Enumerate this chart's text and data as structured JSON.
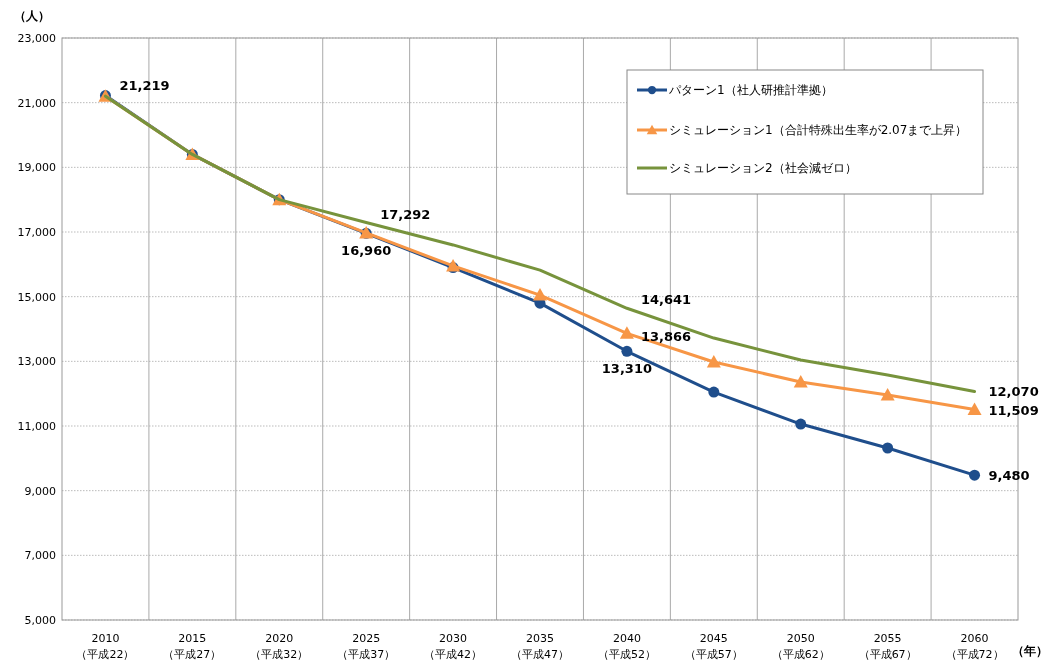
{
  "chart_data": {
    "type": "line",
    "ylabel": "（人）",
    "xlabel": "（年）",
    "categories": [
      "2010\n（平成22）",
      "2015\n（平成27）",
      "2020\n（平成32）",
      "2025\n（平成37）",
      "2030\n（平成42）",
      "2035\n（平成47）",
      "2040\n（平成52）",
      "2045\n（平成57）",
      "2050\n（平成62）",
      "2055\n（平成67）",
      "2060\n（平成72）"
    ],
    "ylim": [
      5000,
      23000
    ],
    "yticks": [
      {
        "value": 5000,
        "label": "5,000"
      },
      {
        "value": 7000,
        "label": "7,000"
      },
      {
        "value": 9000,
        "label": "9,000"
      },
      {
        "value": 11000,
        "label": "11,000"
      },
      {
        "value": 13000,
        "label": "13,000"
      },
      {
        "value": 15000,
        "label": "15,000"
      },
      {
        "value": 17000,
        "label": "17,000"
      },
      {
        "value": 19000,
        "label": "19,000"
      },
      {
        "value": 21000,
        "label": "21,000"
      },
      {
        "value": 23000,
        "label": "23,000"
      }
    ],
    "grid": true,
    "legend": "top right",
    "line_style": "solid",
    "series": [
      {
        "name": "パターン1（社人研推計準拠）",
        "color": "#1f4e8c",
        "marker": "circle",
        "values": [
          21219,
          19400,
          18000,
          16960,
          15900,
          14800,
          13310,
          12050,
          11060,
          10320,
          9480
        ],
        "value_labels": [
          "21,219",
          null,
          null,
          "16,960",
          null,
          null,
          "13,310",
          null,
          null,
          null,
          "9,480"
        ]
      },
      {
        "name": "シミュレーション1（合計特殊出生率が2.07まで上昇）",
        "color": "#f79646",
        "marker": "triangle",
        "values": [
          21200,
          19400,
          18000,
          16970,
          15950,
          15050,
          13866,
          12980,
          12360,
          11960,
          11509
        ],
        "value_labels": [
          null,
          null,
          null,
          null,
          null,
          null,
          "13,866",
          null,
          null,
          null,
          "11,509"
        ]
      },
      {
        "name": "シミュレーション2（社会減ゼロ）",
        "color": "#77933c",
        "marker": "none",
        "values": [
          21200,
          19400,
          18000,
          17292,
          16600,
          15820,
          14641,
          13720,
          13040,
          12580,
          12070
        ],
        "value_labels": [
          null,
          null,
          null,
          "17,292",
          null,
          null,
          "14,641",
          null,
          null,
          null,
          "12,070"
        ]
      }
    ]
  }
}
